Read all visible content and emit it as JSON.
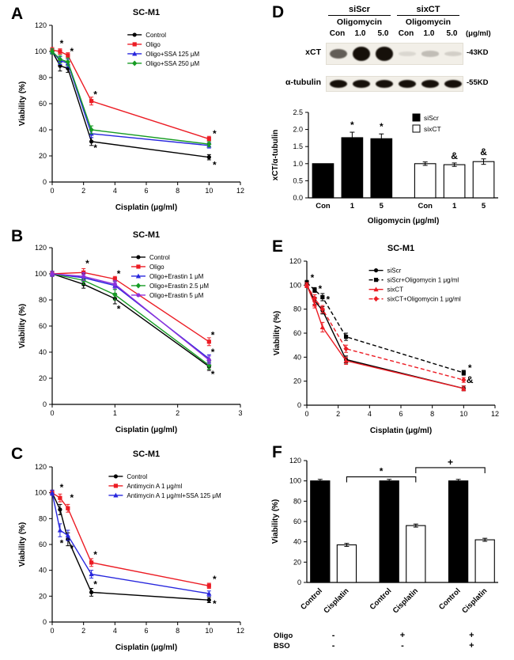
{
  "figure": {
    "background": "#ffffff"
  },
  "panels": {
    "A": {
      "label": "A"
    },
    "B": {
      "label": "B"
    },
    "C": {
      "label": "C"
    },
    "D": {
      "label": "D"
    },
    "E": {
      "label": "E"
    },
    "F": {
      "label": "F"
    }
  },
  "colors": {
    "black": "#000000",
    "red": "#ec1c24",
    "blue": "#2726dd",
    "green": "#169c23",
    "purple": "#8d2fdb"
  },
  "blot": {
    "group_headers": [
      "siScr",
      "sixCT"
    ],
    "treatment_label": "Oligomycin",
    "lane_labels": [
      "Con",
      "1.0",
      "5.0",
      "Con",
      "1.0",
      "5.0"
    ],
    "unit_label": "(μg/ml)",
    "rows": [
      {
        "label": "xCT",
        "marker": "-43KD",
        "band_intensities": [
          0.6,
          1.0,
          0.95,
          0.1,
          0.22,
          0.14
        ]
      },
      {
        "label": "α-tubulin",
        "marker": "-55KD",
        "band_intensities": [
          0.95,
          0.95,
          0.95,
          0.95,
          0.95,
          0.95
        ]
      }
    ]
  },
  "chart_data": [
    {
      "panel": "A",
      "type": "line",
      "title": "SC-M1",
      "xlabel": "Cisplatin (μg/ml)",
      "ylabel": "Viability (%)",
      "xlim": [
        0,
        12
      ],
      "xticks": [
        0,
        2,
        4,
        6,
        8,
        10,
        12
      ],
      "ylim": [
        0,
        120
      ],
      "yticks": [
        0,
        20,
        40,
        60,
        80,
        100,
        120
      ],
      "series": [
        {
          "name": "Control",
          "color": "#000000",
          "marker": "circle",
          "dash": "",
          "x": [
            0,
            0.5,
            1,
            2.5,
            10
          ],
          "y": [
            100,
            89,
            87,
            31,
            19
          ],
          "err": [
            2,
            4,
            3,
            3,
            2
          ]
        },
        {
          "name": "Oligo",
          "color": "#ec1c24",
          "marker": "square",
          "dash": "",
          "x": [
            0,
            0.5,
            1,
            2.5,
            10
          ],
          "y": [
            101,
            100,
            97,
            62,
            33
          ],
          "err": [
            2,
            2,
            2,
            3,
            2
          ]
        },
        {
          "name": "Oligo+SSA 125 μM",
          "color": "#2726dd",
          "marker": "triangle",
          "dash": "",
          "x": [
            0,
            0.5,
            1,
            2.5,
            10
          ],
          "y": [
            100,
            93,
            91,
            37,
            28
          ],
          "err": [
            2,
            3,
            3,
            3,
            2
          ]
        },
        {
          "name": "Oligo+SSA 250 μM",
          "color": "#169c23",
          "marker": "diamond",
          "dash": "",
          "x": [
            0,
            0.5,
            1,
            2.5,
            10
          ],
          "y": [
            100,
            94,
            92,
            40,
            29
          ],
          "err": [
            2,
            3,
            3,
            3,
            2
          ]
        }
      ],
      "annotations": [
        {
          "x": 0.6,
          "y": 106,
          "text": "*"
        },
        {
          "x": 1.25,
          "y": 100,
          "text": "*"
        },
        {
          "x": 2.75,
          "y": 67,
          "text": "*"
        },
        {
          "x": 2.75,
          "y": 26,
          "text": "*"
        },
        {
          "x": 10.35,
          "y": 37,
          "text": "*"
        },
        {
          "x": 10.35,
          "y": 13,
          "text": "*"
        }
      ],
      "legend": {
        "x": 0.4,
        "y": 0.98
      }
    },
    {
      "panel": "B",
      "type": "line",
      "title": "SC-M1",
      "xlabel": "Cisplatin (μg/ml)",
      "ylabel": "Viability (%)",
      "xlim": [
        0,
        3
      ],
      "xticks": [
        0,
        1,
        2,
        3
      ],
      "ylim": [
        0,
        120
      ],
      "yticks": [
        0,
        20,
        40,
        60,
        80,
        100,
        120
      ],
      "series": [
        {
          "name": "Control",
          "color": "#000000",
          "marker": "circle",
          "dash": "",
          "x": [
            0,
            0.5,
            1,
            2.5
          ],
          "y": [
            100,
            92,
            81,
            29
          ],
          "err": [
            2,
            3,
            4,
            3
          ]
        },
        {
          "name": "Oligo",
          "color": "#ec1c24",
          "marker": "square",
          "dash": "",
          "x": [
            0,
            0.5,
            1,
            2.5
          ],
          "y": [
            100,
            101,
            96,
            48
          ],
          "err": [
            2,
            3,
            2,
            3
          ]
        },
        {
          "name": "Oligo+Erastin 1 μM",
          "color": "#2726dd",
          "marker": "triangle",
          "dash": "",
          "x": [
            0,
            0.5,
            1,
            2.5
          ],
          "y": [
            100,
            97,
            91,
            35
          ],
          "err": [
            2,
            3,
            3,
            3
          ]
        },
        {
          "name": "Oligo+Erastin 2.5 μM",
          "color": "#169c23",
          "marker": "diamond",
          "dash": "",
          "x": [
            0,
            0.5,
            1,
            2.5
          ],
          "y": [
            100,
            95,
            84,
            30
          ],
          "err": [
            2,
            3,
            4,
            3
          ]
        },
        {
          "name": "Oligo+Erastin 5 μM",
          "color": "#8d2fdb",
          "marker": "circle",
          "dash": "",
          "x": [
            0,
            0.5,
            1,
            2.5
          ],
          "y": [
            100,
            98,
            92,
            34
          ],
          "err": [
            2,
            3,
            3,
            3
          ]
        }
      ],
      "annotations": [
        {
          "x": 0.56,
          "y": 108,
          "text": "*"
        },
        {
          "x": 1.06,
          "y": 100,
          "text": "*"
        },
        {
          "x": 1.06,
          "y": 73,
          "text": "*"
        },
        {
          "x": 2.56,
          "y": 53,
          "text": "*"
        },
        {
          "x": 2.56,
          "y": 40,
          "text": "*"
        },
        {
          "x": 2.56,
          "y": 23,
          "text": "*"
        }
      ],
      "legend": {
        "x": 0.42,
        "y": 0.98
      }
    },
    {
      "panel": "C",
      "type": "line",
      "title": "SC-M1",
      "xlabel": "Cisplatin (μg/ml)",
      "ylabel": "Viability (%)",
      "xlim": [
        0,
        12
      ],
      "xticks": [
        0,
        2,
        4,
        6,
        8,
        10,
        12
      ],
      "ylim": [
        0,
        120
      ],
      "yticks": [
        0,
        20,
        40,
        60,
        80,
        100,
        120
      ],
      "series": [
        {
          "name": "Control",
          "color": "#000000",
          "marker": "circle",
          "dash": "",
          "x": [
            0,
            0.5,
            1,
            2.5,
            10
          ],
          "y": [
            100,
            87,
            64,
            23,
            17
          ],
          "err": [
            2,
            4,
            5,
            3,
            2
          ]
        },
        {
          "name": "Antimycin A 1 μg/ml",
          "color": "#ec1c24",
          "marker": "square",
          "dash": "",
          "x": [
            0,
            0.5,
            1,
            2.5,
            10
          ],
          "y": [
            100,
            96,
            88,
            46,
            28
          ],
          "err": [
            2,
            3,
            3,
            3,
            2
          ]
        },
        {
          "name": "Antimycin A 1 μg/ml+SSA 125 μM",
          "color": "#2726dd",
          "marker": "triangle",
          "dash": "",
          "x": [
            0,
            0.5,
            1,
            2.5,
            10
          ],
          "y": [
            100,
            71,
            67,
            37,
            22
          ],
          "err": [
            2,
            5,
            4,
            3,
            2
          ]
        }
      ],
      "annotations": [
        {
          "x": 0.6,
          "y": 104,
          "text": "*"
        },
        {
          "x": 1.25,
          "y": 96,
          "text": "*"
        },
        {
          "x": 0.6,
          "y": 61,
          "text": "*"
        },
        {
          "x": 1.25,
          "y": 57,
          "text": "*"
        },
        {
          "x": 2.75,
          "y": 52,
          "text": "*"
        },
        {
          "x": 2.75,
          "y": 29,
          "text": "*"
        },
        {
          "x": 10.35,
          "y": 33,
          "text": "*"
        },
        {
          "x": 10.35,
          "y": 14,
          "text": "*"
        }
      ],
      "legend": {
        "x": 0.3,
        "y": 0.98
      }
    },
    {
      "panel": "D",
      "type": "bar",
      "xlabel": "Oligomycin (μg/ml)",
      "ylabel": "xCT/α-tubulin",
      "ylim": [
        0,
        2.5
      ],
      "yticks": [
        0,
        0.5,
        1,
        1.5,
        2,
        2.5
      ],
      "ydec": 1,
      "bars": [
        {
          "pos": 0,
          "label": "Con",
          "value": 1.0,
          "err": 0,
          "fill": "black",
          "group": "siScr",
          "mark": ""
        },
        {
          "pos": 1,
          "label": "1",
          "value": 1.76,
          "err": 0.16,
          "fill": "black",
          "group": "siScr",
          "mark": "*"
        },
        {
          "pos": 2,
          "label": "5",
          "value": 1.73,
          "err": 0.14,
          "fill": "black",
          "group": "siScr",
          "mark": "*"
        },
        {
          "pos": 3.5,
          "label": "Con",
          "value": 1.0,
          "err": 0.05,
          "fill": "white",
          "group": "sixCT",
          "mark": ""
        },
        {
          "pos": 4.5,
          "label": "1",
          "value": 0.97,
          "err": 0.05,
          "fill": "white",
          "group": "sixCT",
          "mark": "&"
        },
        {
          "pos": 5.5,
          "label": "5",
          "value": 1.06,
          "err": 0.08,
          "fill": "white",
          "group": "sixCT",
          "mark": "&"
        }
      ],
      "legend_boxes": [
        {
          "label": "siScr",
          "fill": "black"
        },
        {
          "label": "sixCT",
          "fill": "white"
        }
      ]
    },
    {
      "panel": "E",
      "type": "line",
      "title": "SC-M1",
      "xlabel": "Cisplatin (μg/ml)",
      "ylabel": "Viability (%)",
      "xlim": [
        0,
        12
      ],
      "xticks": [
        0,
        2,
        4,
        6,
        8,
        10,
        12
      ],
      "ylim": [
        0,
        120
      ],
      "yticks": [
        0,
        20,
        40,
        60,
        80,
        100,
        120
      ],
      "series": [
        {
          "name": "siScr",
          "color": "#000000",
          "marker": "circle",
          "dash": "",
          "x": [
            0,
            0.5,
            1,
            2.5,
            10
          ],
          "y": [
            100,
            87,
            79,
            38,
            14
          ],
          "err": [
            2,
            3,
            3,
            3,
            2
          ]
        },
        {
          "name": "siScr+Oligomycin 1 μg/ml",
          "color": "#000000",
          "marker": "square",
          "dash": "5,3",
          "x": [
            0,
            0.5,
            1,
            2.5,
            10
          ],
          "y": [
            102,
            96,
            90,
            57,
            27
          ],
          "err": [
            2,
            2,
            3,
            3,
            2
          ]
        },
        {
          "name": "sixCT",
          "color": "#ec1c24",
          "marker": "triangle",
          "dash": "",
          "x": [
            0,
            0.5,
            1,
            2.5,
            10
          ],
          "y": [
            100,
            84,
            65,
            37,
            14
          ],
          "err": [
            2,
            3,
            4,
            3,
            2
          ]
        },
        {
          "name": "sixCT+Oligomycin 1 μg/ml",
          "color": "#ec1c24",
          "marker": "diamond",
          "dash": "5,3",
          "x": [
            0,
            0.5,
            1,
            2.5,
            10
          ],
          "y": [
            100,
            89,
            80,
            47,
            21
          ],
          "err": [
            2,
            3,
            3,
            3,
            2
          ]
        }
      ],
      "annotations": [
        {
          "x": 0.35,
          "y": 106,
          "text": "*"
        },
        {
          "x": 0.85,
          "y": 97,
          "text": "*"
        },
        {
          "x": 1.35,
          "y": 88,
          "text": "*"
        },
        {
          "x": 10.4,
          "y": 31,
          "text": "*"
        },
        {
          "x": 10.4,
          "y": 21,
          "text": "&"
        }
      ],
      "legend": {
        "x": 0.33,
        "y": 0.98
      }
    },
    {
      "panel": "F",
      "type": "bar",
      "xlabel": "",
      "ylabel": "Viability (%)",
      "ylim": [
        0,
        120
      ],
      "yticks": [
        0,
        20,
        40,
        60,
        80,
        100,
        120
      ],
      "ydec": 0,
      "rotate_labels": true,
      "bars": [
        {
          "pos": 0,
          "label": "Control",
          "value": 100,
          "err": 1.5,
          "fill": "black",
          "mark": ""
        },
        {
          "pos": 1,
          "label": "Cisplatin",
          "value": 37,
          "err": 1.5,
          "fill": "white",
          "mark": ""
        },
        {
          "pos": 2.6,
          "label": "Control",
          "value": 100,
          "err": 1.5,
          "fill": "black",
          "mark": ""
        },
        {
          "pos": 3.6,
          "label": "Cisplatin",
          "value": 56,
          "err": 1.5,
          "fill": "white",
          "mark": ""
        },
        {
          "pos": 5.2,
          "label": "Control",
          "value": 100,
          "err": 1.5,
          "fill": "black",
          "mark": ""
        },
        {
          "pos": 6.2,
          "label": "Cisplatin",
          "value": 42,
          "err": 1.5,
          "fill": "white",
          "mark": ""
        }
      ],
      "brackets": [
        {
          "x1": 1,
          "x2": 3.6,
          "y": 104,
          "text": "*"
        },
        {
          "x1": 3.6,
          "x2": 6.2,
          "y": 113,
          "text": "+"
        }
      ],
      "row_annotations": [
        {
          "label": "Oligo",
          "values": [
            "-",
            "+",
            "+"
          ]
        },
        {
          "label": "BSO",
          "values": [
            "-",
            "-",
            "+"
          ]
        }
      ],
      "group_centers": [
        0.5,
        3.1,
        5.7
      ]
    }
  ]
}
